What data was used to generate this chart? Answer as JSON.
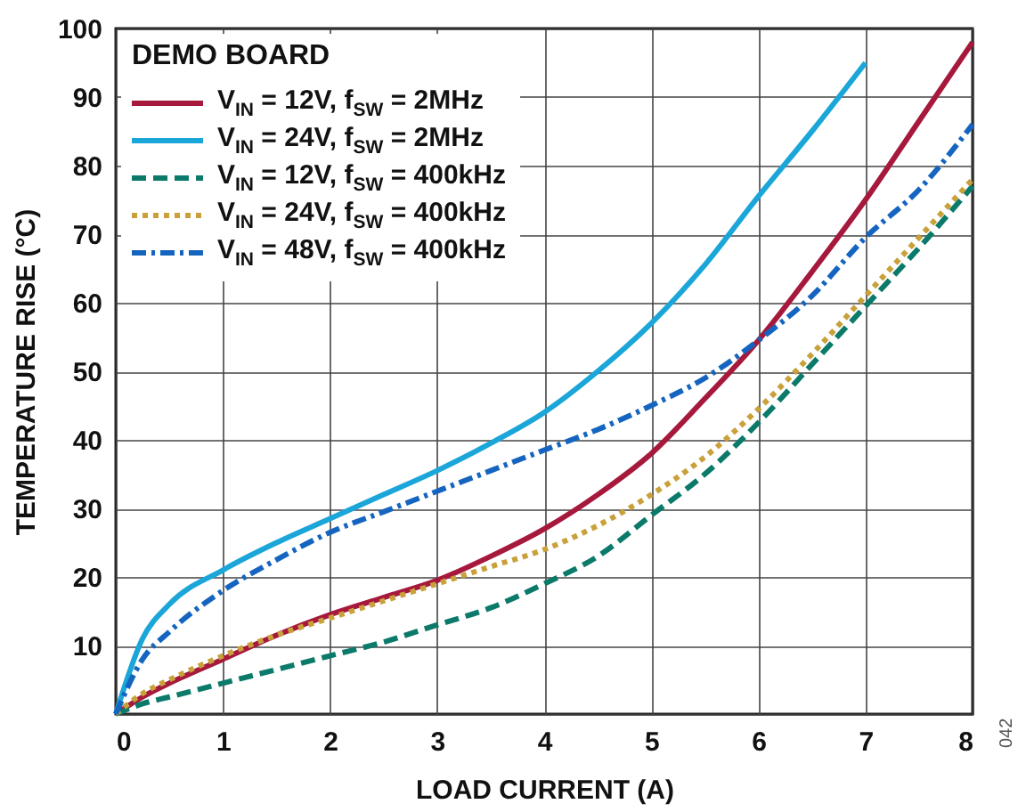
{
  "chart_data": {
    "type": "line",
    "xlabel": "LOAD CURRENT (A)",
    "ylabel": "TEMPERATURE RISE (°C)",
    "legend_title": "DEMO BOARD",
    "x": [
      0,
      0.25,
      0.5,
      1,
      1.5,
      2,
      2.5,
      3,
      3.5,
      4,
      4.5,
      5,
      5.5,
      6,
      6.5,
      7,
      7.5,
      8
    ],
    "series": [
      {
        "name": "V$_{IN}$ = 12V, f$_{SW}$ = 2MHz",
        "color": "#a6193c",
        "line_style": "solid",
        "values": [
          0,
          2.5,
          4.5,
          8,
          11.5,
          14.5,
          17,
          19.5,
          23,
          27,
          32,
          38,
          46,
          54.5,
          64.5,
          75,
          86.5,
          98
        ]
      },
      {
        "name": "V$_{IN}$ = 24V, f$_{SW}$ = 2MHz",
        "color": "#1ba6d9",
        "line_style": "solid",
        "values": [
          0,
          11,
          16,
          21,
          25,
          28.5,
          32,
          35.5,
          39.5,
          44,
          50,
          57,
          65.5,
          75.5,
          85,
          95,
          null,
          null
        ]
      },
      {
        "name": "V$_{IN}$ = 12V, f$_{SW}$ = 400kHz",
        "color": "#0b7a6a",
        "line_style": "dashed",
        "values": [
          0,
          1.5,
          2.5,
          4.5,
          6.5,
          8.5,
          10.5,
          13,
          15.5,
          19,
          23,
          29,
          35,
          42.5,
          51,
          59.5,
          68,
          77
        ]
      },
      {
        "name": "V$_{IN}$ = 24V, f$_{SW}$ = 400kHz",
        "color": "#c9a13a",
        "line_style": "dotted",
        "values": [
          0,
          3,
          5,
          8.5,
          11.5,
          14,
          16.5,
          19,
          21.5,
          24,
          27.5,
          32,
          37.5,
          44.5,
          52.5,
          61,
          69.5,
          78
        ]
      },
      {
        "name": "V$_{IN}$ = 48V, f$_{SW}$ = 400kHz",
        "color": "#1565c0",
        "line_style": "dashdot",
        "values": [
          0,
          8,
          12,
          18,
          22.5,
          26.5,
          29.5,
          32.5,
          35.5,
          38.5,
          41.5,
          45,
          49,
          54.5,
          61,
          69.5,
          76.5,
          86
        ]
      }
    ],
    "xlim": [
      0,
      8
    ],
    "xticks": [
      0,
      1,
      2,
      3,
      4,
      5,
      6,
      7,
      8
    ],
    "ylim": [
      0,
      100
    ],
    "yticks": [
      {
        "value": 0,
        "label": null
      },
      10,
      20,
      30,
      40,
      50,
      60,
      70,
      80,
      90,
      100
    ],
    "grid": true,
    "legend": "top left",
    "marker": "none",
    "annotations": [
      "042"
    ]
  }
}
